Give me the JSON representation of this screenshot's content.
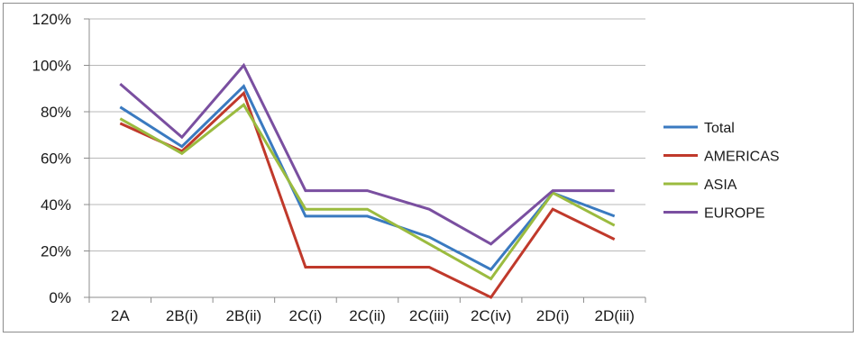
{
  "chart_data": {
    "type": "line",
    "categories": [
      "2A",
      "2B(i)",
      "2B(ii)",
      "2C(i)",
      "2C(ii)",
      "2C(iii)",
      "2C(iv)",
      "2D(i)",
      "2D(iii)"
    ],
    "y_ticks": [
      "0%",
      "20%",
      "40%",
      "60%",
      "80%",
      "100%",
      "120%"
    ],
    "ylim": [
      0,
      120
    ],
    "grid": true,
    "legend_position": "right",
    "series": [
      {
        "name": "Total",
        "color": "#3a7ac0",
        "values": [
          82,
          65,
          91,
          35,
          35,
          26,
          12,
          45,
          35
        ]
      },
      {
        "name": "AMERICAS",
        "color": "#c0392b",
        "values": [
          75,
          63,
          88,
          13,
          13,
          13,
          0,
          38,
          25
        ]
      },
      {
        "name": "ASIA",
        "color": "#9bbb3f",
        "values": [
          77,
          62,
          83,
          38,
          38,
          23,
          8,
          45,
          31
        ]
      },
      {
        "name": "EUROPE",
        "color": "#7a4fa0",
        "values": [
          92,
          69,
          100,
          46,
          46,
          38,
          23,
          46,
          46
        ]
      }
    ]
  }
}
